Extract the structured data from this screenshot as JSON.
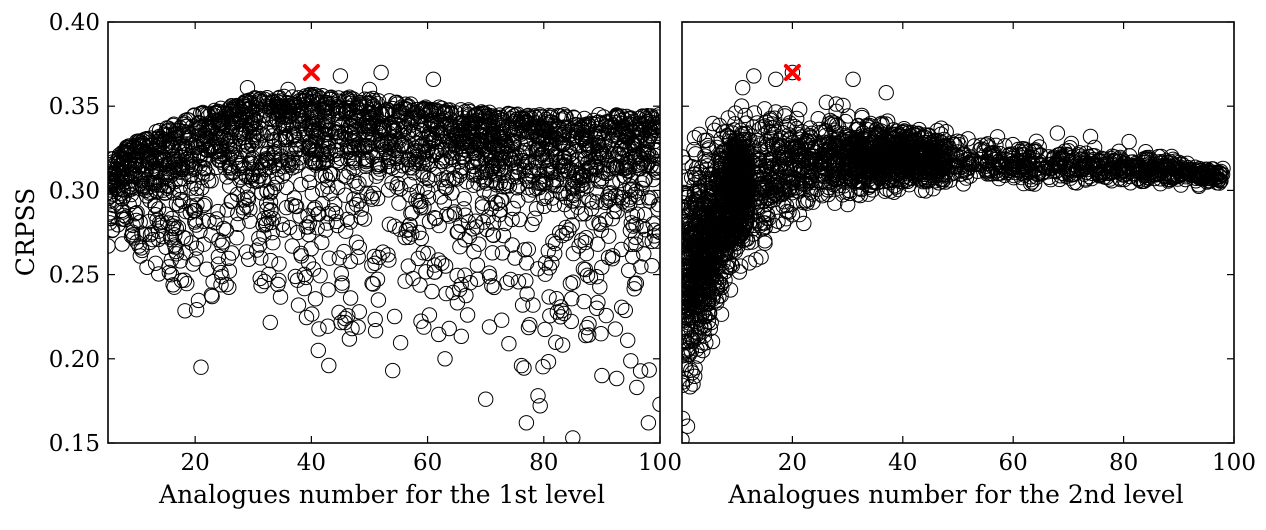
{
  "figure": {
    "ylabel": "CRPSS"
  },
  "chart_data": [
    {
      "type": "scatter",
      "xlabel": "Analogues number for the 1st level",
      "ylabel": "CRPSS",
      "xlim": [
        5,
        100
      ],
      "ylim": [
        0.15,
        0.4
      ],
      "xticks": [
        "20",
        "40",
        "60",
        "80",
        "100"
      ],
      "yticks": [
        "0.15",
        "0.20",
        "0.25",
        "0.30",
        "0.35",
        "0.40"
      ],
      "marker": "open-circle",
      "best_marker": {
        "x": 40,
        "y": 0.37,
        "color": "#ff0000",
        "symbol": "x"
      },
      "envelope": {
        "x": [
          5,
          10,
          20,
          30,
          40,
          50,
          60,
          70,
          80,
          90,
          100
        ],
        "upper": [
          0.318,
          0.33,
          0.345,
          0.355,
          0.357,
          0.355,
          0.35,
          0.347,
          0.345,
          0.345,
          0.345
        ],
        "dense_low": [
          0.29,
          0.29,
          0.295,
          0.3,
          0.3,
          0.3,
          0.297,
          0.295,
          0.293,
          0.29,
          0.287
        ],
        "lower": [
          0.265,
          0.26,
          0.195,
          0.22,
          0.195,
          0.195,
          0.2,
          0.175,
          0.16,
          0.185,
          0.16
        ]
      },
      "points": [
        [
          5,
          0.267
        ],
        [
          6,
          0.291
        ],
        [
          21,
          0.195
        ],
        [
          43,
          0.196
        ],
        [
          77,
          0.162
        ],
        [
          85,
          0.153
        ],
        [
          29,
          0.361
        ],
        [
          45,
          0.368
        ],
        [
          52,
          0.37
        ],
        [
          61,
          0.366
        ],
        [
          50,
          0.36
        ],
        [
          36,
          0.36
        ],
        [
          79,
          0.178
        ],
        [
          70,
          0.176
        ],
        [
          90,
          0.19
        ],
        [
          100,
          0.173
        ],
        [
          98,
          0.162
        ],
        [
          47,
          0.218
        ],
        [
          63,
          0.2
        ],
        [
          54,
          0.193
        ],
        [
          96,
          0.183
        ]
      ]
    },
    {
      "type": "scatter",
      "xlabel": "Analogues number for the 2nd level",
      "ylabel": "",
      "xlim": [
        0,
        100
      ],
      "ylim": [
        0.15,
        0.4
      ],
      "xticks": [
        "20",
        "40",
        "60",
        "80",
        "100"
      ],
      "yticks": [],
      "marker": "open-circle",
      "best_marker": {
        "x": 20,
        "y": 0.37,
        "color": "#ff0000",
        "symbol": "x"
      },
      "envelope": {
        "x": [
          0,
          2,
          5,
          8,
          10,
          15,
          20,
          25,
          30,
          40,
          50,
          60,
          70,
          80,
          90,
          98
        ],
        "upper": [
          0.33,
          0.336,
          0.343,
          0.348,
          0.352,
          0.356,
          0.355,
          0.353,
          0.35,
          0.342,
          0.337,
          0.33,
          0.328,
          0.325,
          0.32,
          0.314
        ],
        "lower": [
          0.15,
          0.175,
          0.205,
          0.235,
          0.25,
          0.262,
          0.275,
          0.283,
          0.29,
          0.297,
          0.3,
          0.302,
          0.302,
          0.303,
          0.302,
          0.303
        ]
      },
      "points": [
        [
          13,
          0.368
        ],
        [
          17,
          0.366
        ],
        [
          11,
          0.361
        ],
        [
          31,
          0.366
        ],
        [
          37,
          0.358
        ],
        [
          20,
          0.37
        ],
        [
          98,
          0.313
        ],
        [
          96,
          0.31
        ],
        [
          94,
          0.312
        ],
        [
          81,
          0.329
        ],
        [
          74,
          0.332
        ],
        [
          68,
          0.334
        ],
        [
          0,
          0.152
        ],
        [
          1,
          0.16
        ],
        [
          2,
          0.185
        ],
        [
          1,
          0.205
        ],
        [
          3,
          0.215
        ]
      ]
    }
  ]
}
